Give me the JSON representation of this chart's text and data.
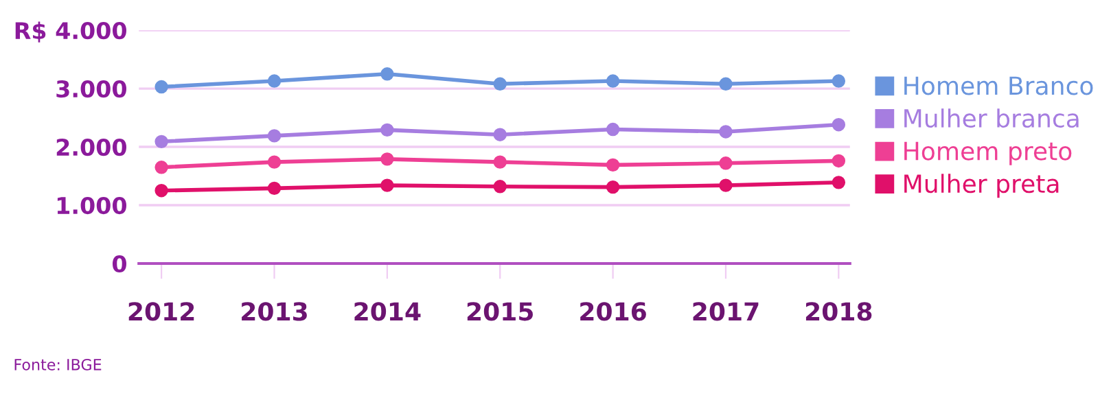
{
  "chart_data": {
    "type": "line",
    "categories": [
      "2012",
      "2013",
      "2014",
      "2015",
      "2016",
      "2017",
      "2018"
    ],
    "series": [
      {
        "name": "Homem Branco",
        "color": "#6a95dd",
        "values": [
          3030,
          3130,
          3250,
          3080,
          3130,
          3080,
          3130
        ]
      },
      {
        "name": "Mulher branca",
        "color": "#a67de0",
        "values": [
          2090,
          2190,
          2290,
          2210,
          2300,
          2260,
          2380
        ]
      },
      {
        "name": "Homem preto",
        "color": "#ee3f94",
        "values": [
          1650,
          1740,
          1790,
          1740,
          1690,
          1720,
          1760
        ]
      },
      {
        "name": "Mulher preta",
        "color": "#e0106a",
        "values": [
          1250,
          1290,
          1340,
          1320,
          1310,
          1340,
          1390
        ]
      }
    ],
    "ylim": [
      0,
      4000
    ],
    "yticks": [
      0,
      {
        "value": 1000,
        "label": "1.000"
      },
      {
        "value": 2000,
        "label": "2.000"
      },
      {
        "value": 3000,
        "label": "3.000"
      },
      {
        "value": 4000,
        "label": "R$ 4.000"
      }
    ],
    "grid": "y",
    "legend": "right",
    "marker": "circle",
    "line_style": "solid",
    "annotations": [
      "Fonte: IBGE"
    ]
  }
}
